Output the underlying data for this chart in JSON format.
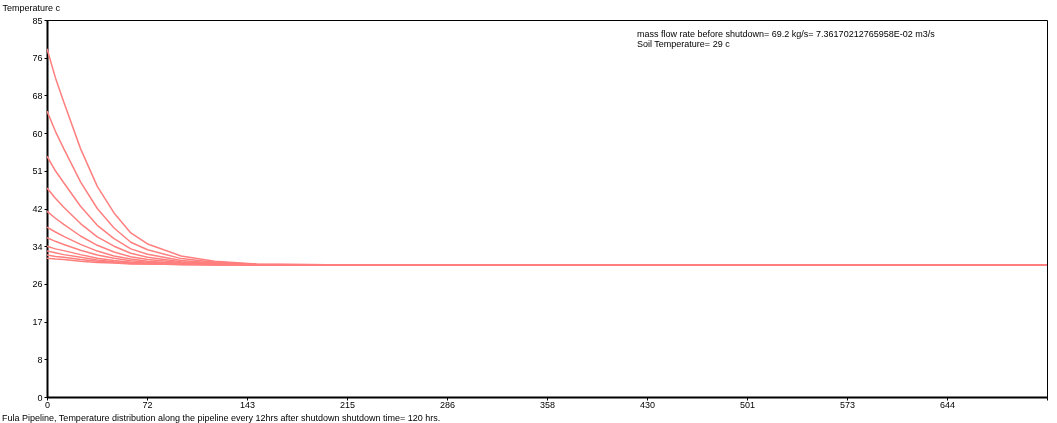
{
  "chart_data": {
    "type": "line",
    "ylabel": "Temperature c",
    "annotations": [
      "mass flow rate before shutdown= 69.2 kg/s= 7.36170212765958E-02 m3/s",
      "Soil Temperature= 29 c",
      "Fula Pipeline, Temperature distribution along the pipeline every 12hrs after shutdown shutdown time= 120 hrs."
    ],
    "x": [
      0,
      6,
      12,
      24,
      36,
      48,
      60,
      72,
      96,
      120,
      150,
      200,
      716
    ],
    "series": [
      {
        "color": "#ff7f7f",
        "values": [
          78.5,
          72,
          66.5,
          56,
          47.5,
          41.5,
          37,
          34.5,
          31.8,
          30.6,
          30.0,
          29.8,
          29.8
        ]
      },
      {
        "color": "#ff7f7f",
        "values": [
          64.5,
          59.9,
          56.0,
          48.5,
          42.5,
          38.1,
          34.9,
          33.2,
          31.2,
          30.4,
          29.9,
          29.8,
          29.8
        ]
      },
      {
        "color": "#ff7f7f",
        "values": [
          54.3,
          51.0,
          48.3,
          43.0,
          38.7,
          35.7,
          33.4,
          32.2,
          30.8,
          30.2,
          29.9,
          29.8,
          29.8
        ]
      },
      {
        "color": "#ff7f7f",
        "values": [
          47.1,
          44.8,
          42.8,
          39.1,
          36.1,
          34.0,
          32.4,
          31.5,
          30.5,
          30.1,
          29.9,
          29.8,
          29.8
        ]
      },
      {
        "color": "#ff7f7f",
        "values": [
          41.9,
          40.3,
          38.9,
          36.3,
          34.2,
          32.7,
          31.6,
          31.0,
          30.3,
          30.0,
          29.8,
          29.8,
          29.8
        ]
      },
      {
        "color": "#ff7f7f",
        "values": [
          38.3,
          37.2,
          36.2,
          34.4,
          32.9,
          31.8,
          31.1,
          30.6,
          30.1,
          29.9,
          29.8,
          29.8,
          29.8
        ]
      },
      {
        "color": "#ff7f7f",
        "values": [
          35.9,
          35.1,
          34.4,
          33.1,
          32.0,
          31.3,
          30.7,
          30.4,
          30.1,
          29.9,
          29.8,
          29.8,
          29.8
        ]
      },
      {
        "color": "#ff7f7f",
        "values": [
          34.0,
          33.4,
          33.0,
          32.1,
          31.3,
          30.8,
          30.4,
          30.2,
          30.0,
          29.9,
          29.8,
          29.8,
          29.8
        ]
      },
      {
        "color": "#ff7f7f",
        "values": [
          32.9,
          32.5,
          32.1,
          31.5,
          30.9,
          30.5,
          30.3,
          30.1,
          29.9,
          29.8,
          29.8,
          29.8,
          29.8
        ]
      },
      {
        "color": "#ff7f7f",
        "values": [
          32.0,
          31.7,
          31.5,
          31.0,
          30.6,
          30.3,
          30.1,
          30.0,
          29.9,
          29.8,
          29.8,
          29.8,
          29.8
        ]
      },
      {
        "color": "#ff7f7f",
        "values": [
          31.3,
          31.1,
          31.0,
          30.6,
          30.3,
          30.2,
          30.0,
          30.0,
          29.9,
          29.8,
          29.8,
          29.8,
          29.8
        ]
      }
    ],
    "xlim": [
      0,
      716
    ],
    "xticks": [
      0,
      {
        "value": 71.6,
        "label": "72"
      },
      {
        "value": 143.2,
        "label": "143"
      },
      {
        "value": 214.8,
        "label": "215"
      },
      {
        "value": 286.4,
        "label": "286"
      },
      358,
      {
        "value": 429.6,
        "label": "430"
      },
      {
        "value": 501.2,
        "label": "501"
      },
      {
        "value": 572.8,
        "label": "573"
      },
      {
        "value": 644.4,
        "label": "644"
      },
      {
        "value": 716,
        "label": null
      }
    ],
    "ylim": [
      0,
      85
    ],
    "yticks": [
      0,
      {
        "value": 8.5,
        "label": "8"
      },
      17,
      {
        "value": 25.5,
        "label": "26"
      },
      34,
      {
        "value": 42.5,
        "label": "42"
      },
      51,
      {
        "value": 59.5,
        "label": "60"
      },
      68,
      {
        "value": 76.5,
        "label": "76"
      },
      85
    ],
    "grid": false,
    "line_style": "solid"
  }
}
